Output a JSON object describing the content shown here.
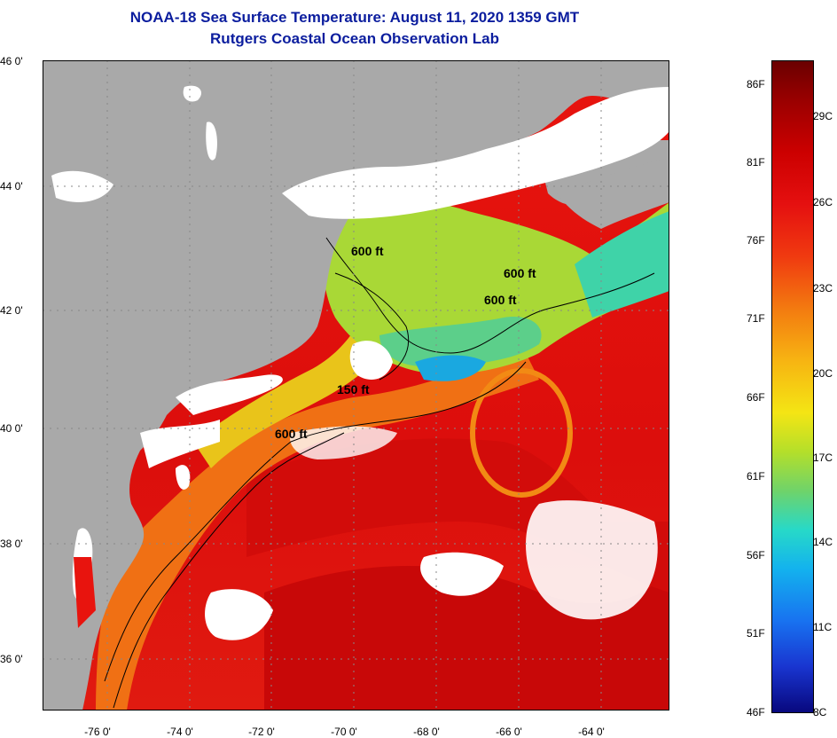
{
  "title": "NOAA-18 Sea Surface Temperature:  August 11, 2020 1359 GMT",
  "subtitle": "Rutgers Coastal Ocean Observation Lab",
  "map": {
    "lat_labels": [
      "46 0'",
      "44 0'",
      "42 0'",
      "40 0'",
      "38 0'",
      "36 0'"
    ],
    "lon_labels": [
      "-76 0'",
      "-74 0'",
      "-72 0'",
      "-70 0'",
      "-68 0'",
      "-66 0'",
      "-64 0'"
    ],
    "contour_labels": [
      "600 ft",
      "600 ft",
      "600 ft",
      "150 ft",
      "600 ft"
    ],
    "colors": {
      "land": "#a9a9a9",
      "cloud": "#ffffff",
      "warm": "#e8140e",
      "hot": "#c40000"
    }
  },
  "colorbar": {
    "fahrenheit": [
      "86F",
      "81F",
      "76F",
      "71F",
      "66F",
      "61F",
      "56F",
      "51F",
      "46F"
    ],
    "celsius": [
      "29C",
      "26C",
      "23C",
      "20C",
      "17C",
      "14C",
      "11C",
      "8C"
    ]
  }
}
